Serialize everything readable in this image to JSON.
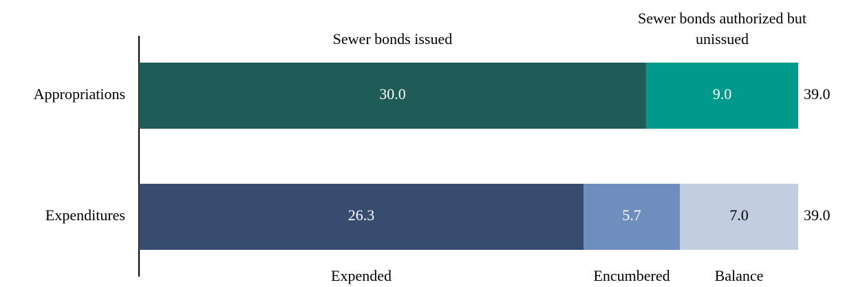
{
  "chart_data": {
    "type": "stacked-bar-horizontal",
    "categories": [
      "Appropriations",
      "Expenditures"
    ],
    "series": [
      {
        "name": "Sewer bonds issued",
        "color": "#1f5c57",
        "values": [
          30,
          null
        ],
        "value_labels": [
          "30.0",
          null
        ]
      },
      {
        "name": "Sewer bonds authorized but unissued",
        "color": "#00998c",
        "values": [
          9,
          null
        ],
        "value_labels": [
          "9.0",
          null
        ]
      },
      {
        "name": "Expended",
        "color": "#374c6e",
        "values": [
          null,
          26.3
        ],
        "value_labels": [
          null,
          "26.3"
        ]
      },
      {
        "name": "Encumbered",
        "color": "#6e8fbd",
        "values": [
          null,
          5.7
        ],
        "value_labels": [
          null,
          "5.7"
        ]
      },
      {
        "name": "Balance",
        "color": "#c3cde0",
        "values": [
          null,
          7
        ],
        "value_labels": [
          null,
          "7.0"
        ]
      }
    ],
    "totals": [
      39,
      39
    ],
    "total_labels": [
      "39.0",
      "39.0"
    ],
    "xlim": [
      0,
      39
    ]
  }
}
